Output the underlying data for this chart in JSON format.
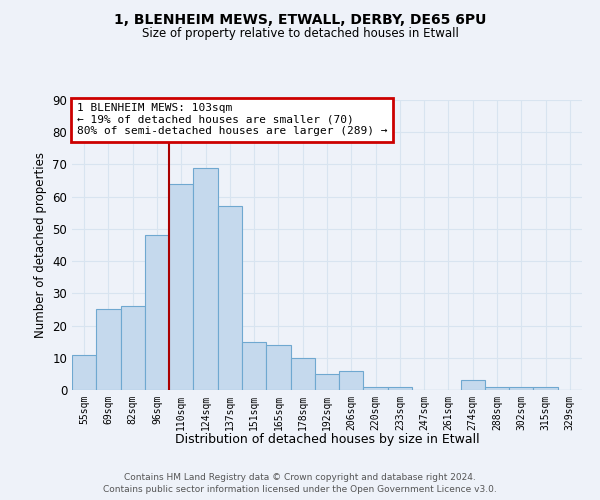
{
  "title": "1, BLENHEIM MEWS, ETWALL, DERBY, DE65 6PU",
  "subtitle": "Size of property relative to detached houses in Etwall",
  "xlabel": "Distribution of detached houses by size in Etwall",
  "ylabel": "Number of detached properties",
  "footer_line1": "Contains HM Land Registry data © Crown copyright and database right 2024.",
  "footer_line2": "Contains public sector information licensed under the Open Government Licence v3.0.",
  "bin_labels": [
    "55sqm",
    "69sqm",
    "82sqm",
    "96sqm",
    "110sqm",
    "124sqm",
    "137sqm",
    "151sqm",
    "165sqm",
    "178sqm",
    "192sqm",
    "206sqm",
    "220sqm",
    "233sqm",
    "247sqm",
    "261sqm",
    "274sqm",
    "288sqm",
    "302sqm",
    "315sqm",
    "329sqm"
  ],
  "bar_heights": [
    11,
    25,
    26,
    48,
    64,
    69,
    57,
    15,
    14,
    10,
    5,
    6,
    1,
    1,
    0,
    0,
    3,
    1,
    1,
    1,
    0
  ],
  "bar_color": "#c5d9ed",
  "bar_edge_color": "#6fa8d0",
  "ylim": [
    0,
    90
  ],
  "yticks": [
    0,
    10,
    20,
    30,
    40,
    50,
    60,
    70,
    80,
    90
  ],
  "red_line_bin_index": 3.5,
  "annotation_text": "1 BLENHEIM MEWS: 103sqm\n← 19% of detached houses are smaller (70)\n80% of semi-detached houses are larger (289) →",
  "annotation_box_color": "#ffffff",
  "annotation_box_edge_color": "#cc0000",
  "red_line_color": "#aa0000",
  "background_color": "#eef2f9",
  "grid_color": "#d8e4f0"
}
